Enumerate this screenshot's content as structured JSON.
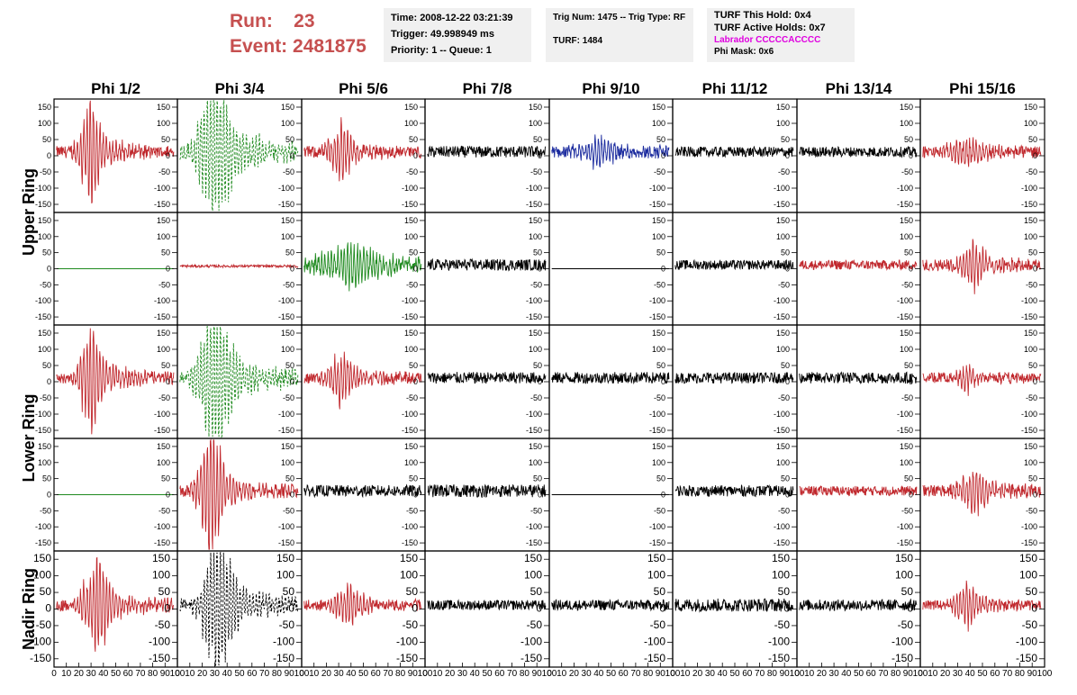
{
  "header": {
    "run_label": "Run:",
    "run_value": "23",
    "event_label": "Event:",
    "event_value": "2481875",
    "time": "Time: 2008-12-22 03:21:39",
    "trigger": "Trigger: 49.998949 ms",
    "priority": "Priority: 1 -- Queue: 1",
    "trig": "Trig Num: 1475 -- Trig Type: RF",
    "turf": "TURF: 1484",
    "hold": "TURF This Hold: 0x4",
    "active": "TURF Active Holds: 0x7",
    "labrador": "Labrador CCCCCACCCC",
    "phimask": "Phi Mask: 0x6"
  },
  "colors": {
    "red": "#c0282d",
    "green": "#1f8a1f",
    "blue": "#1a2a9e",
    "black": "#000000",
    "title": "#c65050",
    "labrador": "#e000e0",
    "box": "#f0f0f0"
  },
  "chart_data": {
    "type": "line",
    "columns": [
      "Phi 1/2",
      "Phi 3/4",
      "Phi 5/6",
      "Phi 7/8",
      "Phi 9/10",
      "Phi 11/12",
      "Phi 13/14",
      "Phi 15/16"
    ],
    "rows": [
      "Upper Ring",
      "Lower Ring",
      "Nadir Ring"
    ],
    "panel_rows": 5,
    "ylim": [
      -175,
      175
    ],
    "xlim": [
      0,
      100
    ],
    "yticks": [
      -150,
      -100,
      -50,
      0,
      50,
      100,
      150
    ],
    "xticks": [
      0,
      10,
      20,
      30,
      40,
      50,
      60,
      70,
      80,
      90,
      100
    ],
    "panels": [
      [
        {
          "color": "red",
          "amp": 115,
          "noise": 18,
          "peak": 28,
          "width": 9
        },
        {
          "color": "green",
          "amp": 170,
          "noise": 22,
          "peak": 28,
          "width": 13,
          "dashed": true
        },
        {
          "color": "red",
          "amp": 60,
          "noise": 18,
          "peak": 30,
          "width": 10
        },
        {
          "color": "black",
          "amp": 0,
          "noise": 18
        },
        {
          "color": "blue",
          "amp": 30,
          "noise": 18,
          "peak": 35,
          "width": 15
        },
        {
          "color": "black",
          "amp": 0,
          "noise": 16
        },
        {
          "color": "black",
          "amp": 0,
          "noise": 16
        },
        {
          "color": "red",
          "amp": 30,
          "noise": 18,
          "peak": 35,
          "width": 14
        }
      ],
      [
        {
          "color": "green",
          "amp": 0,
          "noise": 0,
          "flat": 0
        },
        {
          "color": "red",
          "amp": 0,
          "noise": 4,
          "offset": 8
        },
        {
          "color": "green",
          "amp": 45,
          "noise": 20,
          "peak": 35,
          "width": 25
        },
        {
          "color": "black",
          "amp": 0,
          "noise": 18
        },
        {
          "color": "black",
          "amp": 0,
          "noise": 0,
          "flat": 0
        },
        {
          "color": "black",
          "amp": 0,
          "noise": 15
        },
        {
          "color": "red",
          "amp": 0,
          "noise": 15
        },
        {
          "color": "red",
          "amp": 55,
          "noise": 18,
          "peak": 40,
          "width": 10
        }
      ],
      [
        {
          "color": "red",
          "amp": 115,
          "noise": 18,
          "peak": 28,
          "width": 9
        },
        {
          "color": "green",
          "amp": 165,
          "noise": 20,
          "peak": 28,
          "width": 13,
          "dashed": true
        },
        {
          "color": "red",
          "amp": 55,
          "noise": 18,
          "peak": 30,
          "width": 10
        },
        {
          "color": "black",
          "amp": 0,
          "noise": 18
        },
        {
          "color": "black",
          "amp": 0,
          "noise": 18
        },
        {
          "color": "black",
          "amp": 0,
          "noise": 17
        },
        {
          "color": "black",
          "amp": 0,
          "noise": 18
        },
        {
          "color": "red",
          "amp": 25,
          "noise": 16,
          "peak": 35,
          "width": 10
        }
      ],
      [
        {
          "color": "green",
          "amp": 0,
          "noise": 0,
          "flat": 0
        },
        {
          "color": "red",
          "amp": 150,
          "noise": 18,
          "peak": 25,
          "width": 9
        },
        {
          "color": "black",
          "amp": 0,
          "noise": 18
        },
        {
          "color": "black",
          "amp": 0,
          "noise": 20
        },
        {
          "color": "black",
          "amp": 0,
          "noise": 0,
          "flat": 0
        },
        {
          "color": "black",
          "amp": 0,
          "noise": 17
        },
        {
          "color": "red",
          "amp": 0,
          "noise": 15
        },
        {
          "color": "red",
          "amp": 55,
          "noise": 18,
          "peak": 40,
          "width": 11
        }
      ],
      [
        {
          "color": "red",
          "amp": 95,
          "noise": 18,
          "peak": 32,
          "width": 12
        },
        {
          "color": "black",
          "amp": 155,
          "noise": 20,
          "peak": 30,
          "width": 12,
          "dashed": true
        },
        {
          "color": "red",
          "amp": 45,
          "noise": 16,
          "peak": 35,
          "width": 12
        },
        {
          "color": "black",
          "amp": 0,
          "noise": 15
        },
        {
          "color": "black",
          "amp": 0,
          "noise": 16
        },
        {
          "color": "black",
          "amp": 0,
          "noise": 20
        },
        {
          "color": "black",
          "amp": 0,
          "noise": 17
        },
        {
          "color": "red",
          "amp": 45,
          "noise": 15,
          "peak": 35,
          "width": 10
        }
      ]
    ]
  }
}
